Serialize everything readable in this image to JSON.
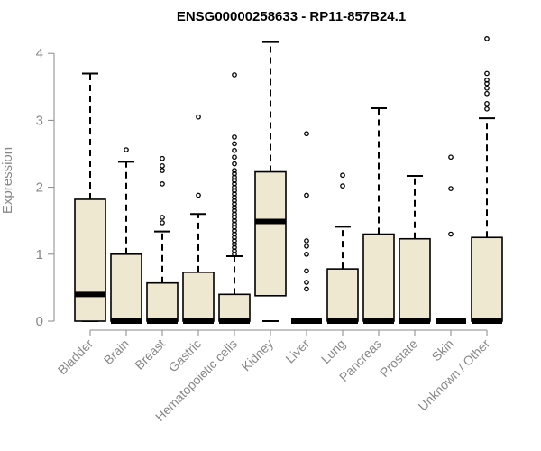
{
  "chart_data": {
    "type": "boxplot",
    "title": "ENSG00000258633 - RP11-857B24.1",
    "xlabel": "",
    "ylabel": "Expression",
    "ylim": [
      0,
      4.25
    ],
    "yticks": [
      0,
      1,
      2,
      3,
      4
    ],
    "grid": false,
    "colors": {
      "box_fill": "#efe8d0",
      "stroke": "#000000",
      "axis": "#888888"
    },
    "categories": [
      "Bladder",
      "Brain",
      "Breast",
      "Gastric",
      "Hematopoietic cells",
      "Kidney",
      "Liver",
      "Lung",
      "Pancreas",
      "Prostate",
      "Skin",
      "Unknown / Other"
    ],
    "boxes": [
      {
        "q1": 0.0,
        "median": 0.4,
        "q3": 1.82,
        "whisker_low": 0.0,
        "whisker_high": 3.7,
        "outliers": []
      },
      {
        "q1": 0.0,
        "median": 0.0,
        "q3": 1.0,
        "whisker_low": 0.0,
        "whisker_high": 2.38,
        "outliers": [
          2.56
        ]
      },
      {
        "q1": 0.0,
        "median": 0.0,
        "q3": 0.57,
        "whisker_low": 0.0,
        "whisker_high": 1.34,
        "outliers": [
          1.47,
          1.55,
          2.05,
          2.25,
          2.43,
          2.32
        ]
      },
      {
        "q1": 0.0,
        "median": 0.0,
        "q3": 0.73,
        "whisker_low": 0.0,
        "whisker_high": 1.6,
        "outliers": [
          1.88,
          3.05
        ]
      },
      {
        "q1": 0.0,
        "median": 0.0,
        "q3": 0.4,
        "whisker_low": 0.0,
        "whisker_high": 0.97,
        "outliers": [
          1.0,
          1.05,
          1.1,
          1.15,
          1.2,
          1.25,
          1.3,
          1.35,
          1.4,
          1.45,
          1.5,
          1.55,
          1.6,
          1.65,
          1.7,
          1.75,
          1.8,
          1.85,
          1.9,
          1.95,
          2.0,
          2.05,
          2.1,
          2.15,
          2.2,
          2.25,
          2.35,
          2.45,
          2.55,
          2.65,
          2.75,
          3.68
        ]
      },
      {
        "q1": 0.38,
        "median": 1.49,
        "q3": 2.23,
        "whisker_low": 0.0,
        "whisker_high": 4.17,
        "outliers": []
      },
      {
        "q1": 0.0,
        "median": 0.0,
        "q3": 0.0,
        "whisker_low": 0.0,
        "whisker_high": 0.0,
        "outliers": [
          0.48,
          0.58,
          0.75,
          1.0,
          1.12,
          1.2,
          1.88,
          2.8
        ]
      },
      {
        "q1": 0.0,
        "median": 0.0,
        "q3": 0.78,
        "whisker_low": 0.0,
        "whisker_high": 1.41,
        "outliers": [
          2.02,
          2.18
        ]
      },
      {
        "q1": 0.0,
        "median": 0.0,
        "q3": 1.3,
        "whisker_low": 0.0,
        "whisker_high": 3.18,
        "outliers": []
      },
      {
        "q1": 0.0,
        "median": 0.0,
        "q3": 1.23,
        "whisker_low": 0.0,
        "whisker_high": 2.17,
        "outliers": []
      },
      {
        "q1": 0.0,
        "median": 0.0,
        "q3": 0.0,
        "whisker_low": 0.0,
        "whisker_high": 0.0,
        "outliers": [
          1.3,
          1.98,
          2.45
        ]
      },
      {
        "q1": 0.0,
        "median": 0.0,
        "q3": 1.25,
        "whisker_low": 0.0,
        "whisker_high": 3.03,
        "outliers": [
          3.17,
          3.25,
          3.4,
          3.48,
          3.55,
          3.6,
          3.7,
          4.22
        ]
      }
    ]
  }
}
